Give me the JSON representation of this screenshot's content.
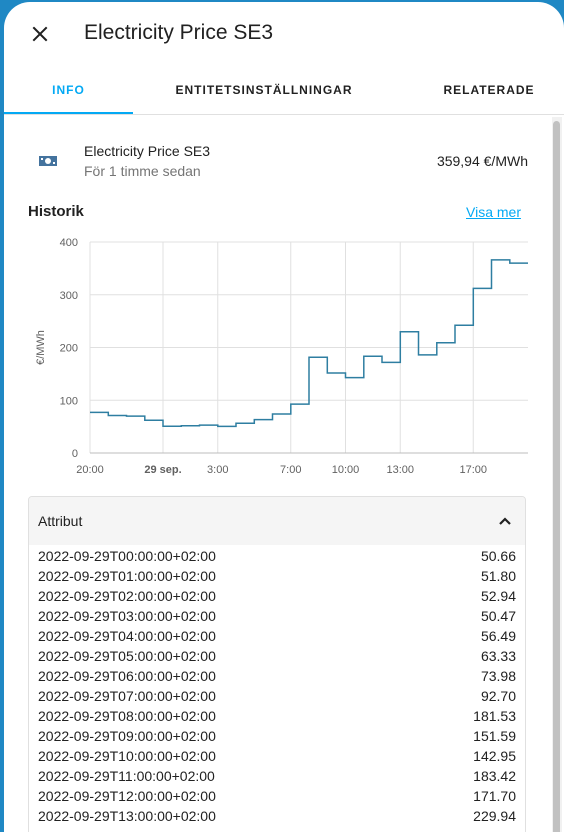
{
  "dialog": {
    "title": "Electricity Price SE3"
  },
  "tabs": [
    {
      "label": "INFO",
      "active": true
    },
    {
      "label": "ENTITETSINSTÄLLNINGAR",
      "active": false
    },
    {
      "label": "RELATERADE",
      "active": false
    }
  ],
  "entity": {
    "icon": "cash-icon",
    "name": "Electricity Price SE3",
    "last_changed": "För 1 timme sedan",
    "state": "359,94 €/MWh"
  },
  "history": {
    "title": "Historik",
    "show_more": "Visa mer"
  },
  "chart_data": {
    "type": "line",
    "step": true,
    "ylabel": "€/MWh",
    "xlabel": "",
    "ylim": [
      0,
      400
    ],
    "yticks": [
      0,
      100,
      200,
      300,
      400
    ],
    "xtick_labels": [
      "20:00",
      "29 sep.",
      "3:00",
      "7:00",
      "10:00",
      "13:00",
      "17:00"
    ],
    "xtick_hours": [
      20,
      24,
      27,
      31,
      34,
      37,
      41
    ],
    "x_range_hours": [
      20,
      44
    ],
    "grid": true,
    "color": "#2e7ea1",
    "series": [
      {
        "hours": [
          20,
          21,
          22,
          23,
          24,
          25,
          26,
          27,
          28,
          29,
          30,
          31,
          32,
          33,
          34,
          35,
          36,
          37,
          38,
          39,
          40,
          41,
          42,
          43
        ],
        "values": [
          77,
          71,
          70,
          62,
          50.66,
          51.8,
          52.94,
          50.47,
          56.49,
          63.33,
          73.98,
          92.7,
          181.53,
          151.59,
          142.95,
          183.42,
          171.7,
          229.94,
          186,
          209,
          242,
          312,
          366,
          360
        ]
      }
    ]
  },
  "attributes": {
    "title": "Attribut",
    "rows": [
      {
        "key": "2022-09-29T00:00:00+02:00",
        "value": "50.66"
      },
      {
        "key": "2022-09-29T01:00:00+02:00",
        "value": "51.80"
      },
      {
        "key": "2022-09-29T02:00:00+02:00",
        "value": "52.94"
      },
      {
        "key": "2022-09-29T03:00:00+02:00",
        "value": "50.47"
      },
      {
        "key": "2022-09-29T04:00:00+02:00",
        "value": "56.49"
      },
      {
        "key": "2022-09-29T05:00:00+02:00",
        "value": "63.33"
      },
      {
        "key": "2022-09-29T06:00:00+02:00",
        "value": "73.98"
      },
      {
        "key": "2022-09-29T07:00:00+02:00",
        "value": "92.70"
      },
      {
        "key": "2022-09-29T08:00:00+02:00",
        "value": "181.53"
      },
      {
        "key": "2022-09-29T09:00:00+02:00",
        "value": "151.59"
      },
      {
        "key": "2022-09-29T10:00:00+02:00",
        "value": "142.95"
      },
      {
        "key": "2022-09-29T11:00:00+02:00",
        "value": "183.42"
      },
      {
        "key": "2022-09-29T12:00:00+02:00",
        "value": "171.70"
      },
      {
        "key": "2022-09-29T13:00:00+02:00",
        "value": "229.94"
      }
    ]
  }
}
